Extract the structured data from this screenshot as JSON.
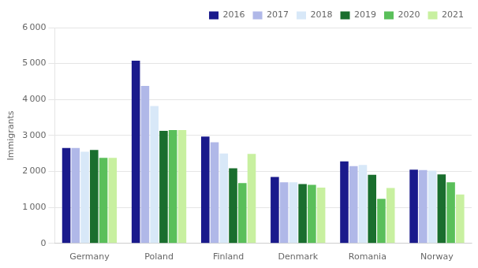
{
  "chart_data": {
    "type": "bar",
    "ylabel": "Immigrants",
    "categories": [
      "Germany",
      "Poland",
      "Finland",
      "Denmark",
      "Romania",
      "Norway"
    ],
    "series": [
      {
        "name": "2016",
        "color": "#1a1a8c",
        "values": [
          2650,
          5080,
          2970,
          1850,
          2280,
          2050
        ]
      },
      {
        "name": "2017",
        "color": "#b0b8e8",
        "values": [
          2650,
          4380,
          2810,
          1700,
          2150,
          2040
        ]
      },
      {
        "name": "2018",
        "color": "#d8e8f8",
        "values": [
          2550,
          3820,
          2500,
          1700,
          2180,
          2020
        ]
      },
      {
        "name": "2019",
        "color": "#1a6e2e",
        "values": [
          2600,
          3130,
          2090,
          1650,
          1910,
          1920
        ]
      },
      {
        "name": "2020",
        "color": "#5abf5a",
        "values": [
          2380,
          3150,
          1680,
          1630,
          1240,
          1700
        ]
      },
      {
        "name": "2021",
        "color": "#c8f0a0",
        "values": [
          2380,
          3150,
          2490,
          1550,
          1540,
          1360
        ]
      }
    ],
    "ylim": [
      0,
      6000
    ],
    "yticks": [
      0,
      {
        "value": 1000,
        "label": "1 000"
      },
      {
        "value": 2000,
        "label": "2 000"
      },
      {
        "value": 3000,
        "label": "3 000"
      },
      {
        "value": 4000,
        "label": "4 000"
      },
      {
        "value": 5000,
        "label": "5 000"
      },
      {
        "value": 6000,
        "label": "6 000"
      }
    ],
    "grid": true,
    "legend": "upper right"
  }
}
